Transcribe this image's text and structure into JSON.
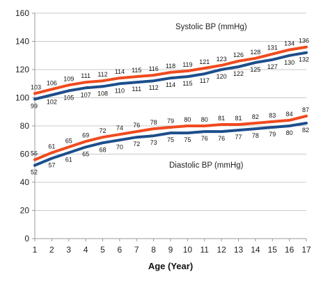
{
  "chart_data": {
    "type": "line",
    "title": "",
    "xlabel": "Age (Year)",
    "ylabel": "",
    "x": [
      1,
      2,
      3,
      4,
      5,
      6,
      7,
      8,
      9,
      10,
      11,
      12,
      13,
      14,
      15,
      16,
      17
    ],
    "xlim": [
      1,
      17
    ],
    "ylim": [
      0,
      160
    ],
    "yticks": [
      0,
      20,
      40,
      60,
      80,
      100,
      120,
      140,
      160
    ],
    "grid": true,
    "series": [
      {
        "name": "Systolic BP (mmHg)",
        "color": "#f04a1e",
        "values": [
          103,
          106,
          109,
          111,
          112,
          114,
          115,
          116,
          118,
          119,
          121,
          123,
          126,
          128,
          131,
          134,
          136
        ]
      },
      {
        "name": "Systolic BP (mmHg)",
        "color": "#1c4e8c",
        "values": [
          99,
          102,
          105,
          107,
          108,
          110,
          111,
          112,
          114,
          115,
          117,
          120,
          122,
          125,
          127,
          130,
          132
        ]
      },
      {
        "name": "Diastolic BP (mmHg)",
        "color": "#f04a1e",
        "values": [
          56,
          61,
          65,
          69,
          72,
          74,
          76,
          78,
          79,
          80,
          80,
          81,
          81,
          82,
          83,
          84,
          87
        ]
      },
      {
        "name": "Diastolic BP (mmHg)",
        "color": "#1c4e8c",
        "values": [
          52,
          57,
          61,
          65,
          68,
          70,
          72,
          73,
          75,
          75,
          76,
          76,
          77,
          78,
          79,
          80,
          82
        ]
      }
    ],
    "annotations": [
      "Systolic BP (mmHg)",
      "Diastolic BP (mmHg)"
    ]
  }
}
